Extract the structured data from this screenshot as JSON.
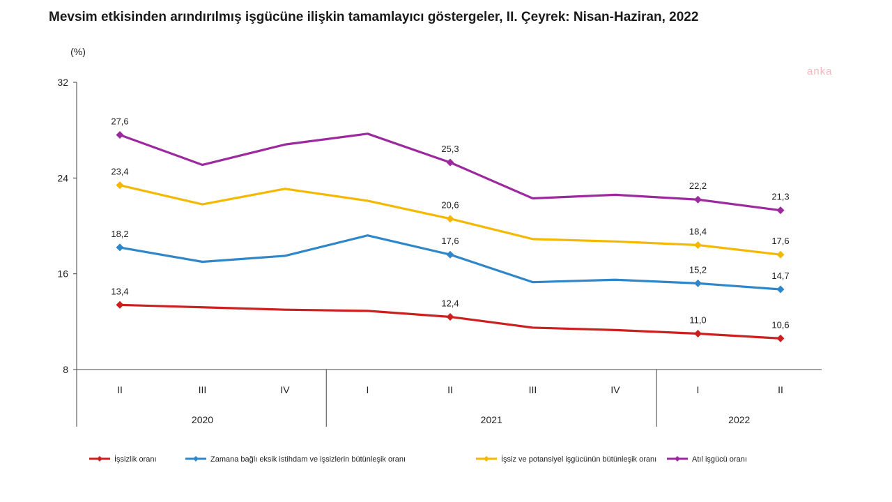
{
  "title": "Mevsim etkisinden arındırılmış işgücüne ilişkin tamamlayıcı göstergeler, II. Çeyrek: Nisan-Haziran, 2022",
  "watermark": "anka",
  "chart_data": {
    "type": "line",
    "unit_label": "(%)",
    "ylim": [
      8,
      32
    ],
    "yticks": [
      "8",
      "16",
      "24",
      "32"
    ],
    "categories": [
      "II",
      "III",
      "IV",
      "I",
      "II",
      "III",
      "IV",
      "I",
      "II"
    ],
    "years": [
      {
        "label": "2020",
        "span": [
          0,
          2
        ]
      },
      {
        "label": "2021",
        "span": [
          3,
          6
        ]
      },
      {
        "label": "2022",
        "span": [
          7,
          8
        ]
      }
    ],
    "legend_position": "bottom",
    "grid": false,
    "series": [
      {
        "name": "İşsizlik oranı",
        "color": "#cc1f1f",
        "values": [
          13.4,
          13.2,
          13.0,
          12.9,
          12.4,
          11.5,
          11.3,
          11.0,
          10.6
        ],
        "labels": [
          "13,4",
          "",
          "",
          "",
          "12,4",
          "",
          "",
          "11,0",
          "10,6"
        ]
      },
      {
        "name": "Zamana bağlı eksik istihdam ve işsizlerin bütünleşik oranı",
        "color": "#2f86c8",
        "values": [
          18.2,
          17.0,
          17.5,
          19.2,
          17.6,
          15.3,
          15.5,
          15.2,
          14.7
        ],
        "labels": [
          "18,2",
          "",
          "",
          "",
          "17,6",
          "",
          "",
          "15,2",
          "14,7"
        ]
      },
      {
        "name": "İşsiz ve potansiyel işgücünün bütünleşik oranı",
        "color": "#f5b800",
        "values": [
          23.4,
          21.8,
          23.1,
          22.1,
          20.6,
          18.9,
          18.7,
          18.4,
          17.6
        ],
        "labels": [
          "23,4",
          "",
          "",
          "",
          "20,6",
          "",
          "",
          "18,4",
          "17,6"
        ]
      },
      {
        "name": "Atıl işgücü oranı",
        "color": "#9c2a9e",
        "values": [
          27.6,
          25.1,
          26.8,
          27.7,
          25.3,
          22.3,
          22.6,
          22.2,
          21.3
        ],
        "labels": [
          "27,6",
          "",
          "",
          "",
          "25,3",
          "",
          "",
          "22,2",
          "21,3"
        ]
      }
    ]
  }
}
